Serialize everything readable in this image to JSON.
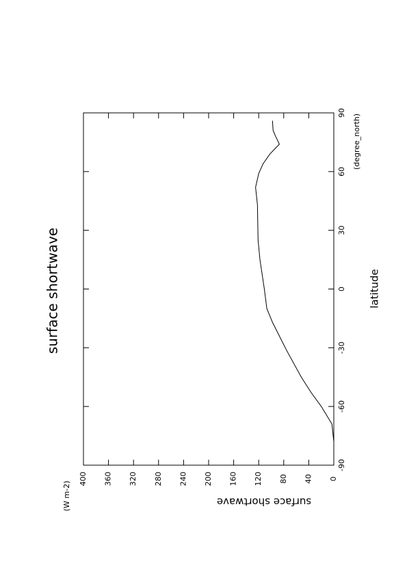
{
  "chart_data": {
    "type": "line",
    "title": "surface shortwave",
    "x_label": "latitude",
    "x_units": "(degree_north)",
    "y_label": "surface shortwave",
    "y_units": "(W m-2)",
    "x": [
      -78,
      -69,
      -60,
      -53,
      -45,
      -31,
      -17,
      -10,
      0,
      15,
      25,
      43,
      52,
      59,
      64,
      69,
      74,
      78,
      81,
      86
    ],
    "values": [
      0,
      3,
      20,
      36,
      52,
      76,
      98,
      107,
      111,
      118,
      121,
      122,
      125,
      120,
      113,
      102,
      87,
      93,
      97,
      98
    ],
    "color": "#000000",
    "xlim": [
      -90,
      90
    ],
    "xticks": [
      -90,
      -60,
      -30,
      0,
      30,
      60,
      90
    ],
    "ylim": [
      0,
      400
    ],
    "yticks": [
      0,
      40,
      80,
      120,
      160,
      200,
      240,
      280,
      320,
      360,
      400
    ]
  }
}
